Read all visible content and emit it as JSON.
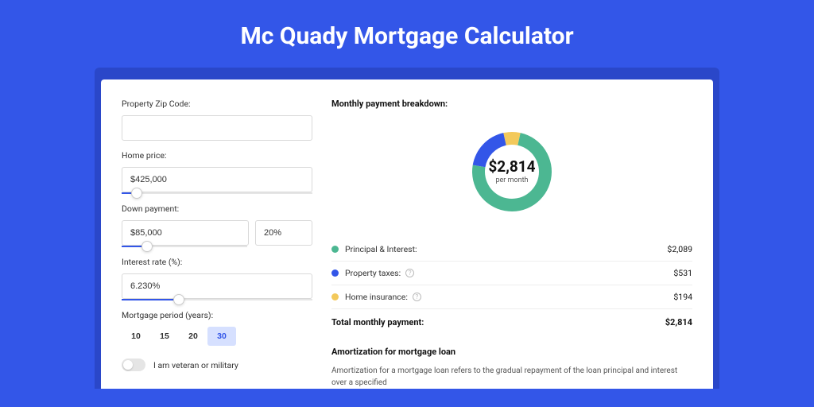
{
  "colors": {
    "page_bg": "#3356e8",
    "card_shadow_bg": "#2a47c9",
    "card_bg": "#ffffff",
    "slider_fill": "#3356e8",
    "period_active_bg": "#d6e0ff",
    "period_active_text": "#3356e8"
  },
  "header": {
    "title": "Mc Quady Mortgage Calculator"
  },
  "form": {
    "zip": {
      "label": "Property Zip Code:",
      "value": ""
    },
    "home_price": {
      "label": "Home price:",
      "value": "$425,000",
      "slider_pct": 8
    },
    "down_payment": {
      "label": "Down payment:",
      "amount": "$85,000",
      "percent": "20%",
      "slider_pct": 20
    },
    "interest_rate": {
      "label": "Interest rate (%):",
      "value": "6.230%",
      "slider_pct": 30
    },
    "period": {
      "label": "Mortgage period (years):",
      "options": [
        "10",
        "15",
        "20",
        "30"
      ],
      "selected": "30"
    },
    "veteran": {
      "label": "I am veteran or military",
      "checked": false
    }
  },
  "breakdown": {
    "title": "Monthly payment breakdown:",
    "donut": {
      "center_value": "$2,814",
      "center_sub": "per month",
      "radius": 60,
      "thickness": 18,
      "slices": [
        {
          "key": "principal",
          "value": 2089,
          "color": "#4cb792"
        },
        {
          "key": "taxes",
          "value": 531,
          "color": "#3356e8"
        },
        {
          "key": "insurance",
          "value": 194,
          "color": "#f3c95b"
        }
      ]
    },
    "rows": [
      {
        "dot_color": "#4cb792",
        "label": "Principal & Interest:",
        "info": false,
        "value": "$2,089"
      },
      {
        "dot_color": "#3356e8",
        "label": "Property taxes:",
        "info": true,
        "value": "$531"
      },
      {
        "dot_color": "#f3c95b",
        "label": "Home insurance:",
        "info": true,
        "value": "$194"
      }
    ],
    "total": {
      "label": "Total monthly payment:",
      "value": "$2,814"
    }
  },
  "amortization": {
    "title": "Amortization for mortgage loan",
    "text": "Amortization for a mortgage loan refers to the gradual repayment of the loan principal and interest over a specified"
  }
}
